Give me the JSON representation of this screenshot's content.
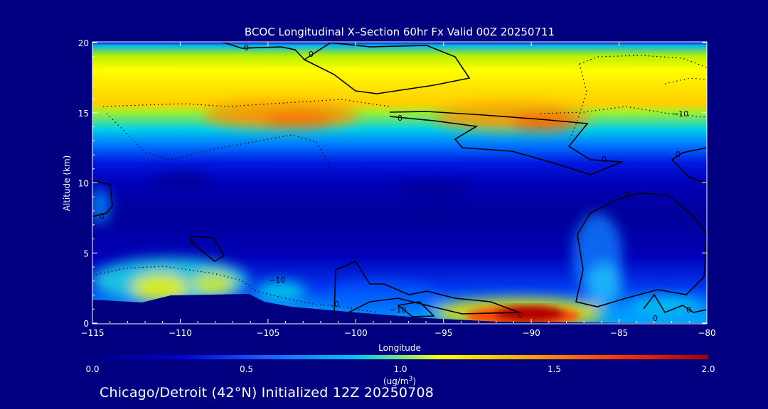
{
  "chart_data": {
    "type": "heatmap",
    "title": "BCOC Longitudinal X–Section 60hr  Fx Valid 00Z 20250711",
    "xlabel": "Longitude",
    "ylabel": "Altitude (km)",
    "xlim": [
      -115,
      -80
    ],
    "ylim": [
      0,
      20
    ],
    "x_ticks": [
      -115,
      -110,
      -105,
      -100,
      -95,
      -90,
      -85,
      -80
    ],
    "x_tick_labels": [
      "−115",
      "−110",
      "−105",
      "−100",
      "−95",
      "−90",
      "−85",
      "−80"
    ],
    "y_ticks": [
      0,
      5,
      10,
      15,
      20
    ],
    "y_tick_labels": [
      "0",
      "5",
      "10",
      "15",
      "20"
    ],
    "colorbar": {
      "min": 0.0,
      "max": 2.0,
      "ticks": [
        0.0,
        0.5,
        1.0,
        1.5,
        2.0
      ],
      "tick_labels": [
        "0.0",
        "0.5",
        "1.0",
        "1.5",
        "2.0"
      ],
      "unit_label": "(ug/m",
      "unit_sup": "3",
      "unit_close": ")",
      "colors": [
        "#000080",
        "#0000d0",
        "#1e5aff",
        "#00c8f0",
        "#ffff00",
        "#ffa000",
        "#ff3000",
        "#a00000"
      ]
    },
    "concentration_features": [
      {
        "feature": "upper band",
        "lon": [
          -115,
          -80
        ],
        "alt": [
          12.5,
          19
        ],
        "value": 1.1
      },
      {
        "feature": "upper maximum west",
        "lon": [
          -107,
          -98
        ],
        "alt": [
          14,
          15.5
        ],
        "value": 1.4
      },
      {
        "feature": "upper maximum east",
        "lon": [
          -95,
          -84
        ],
        "alt": [
          14,
          15.5
        ],
        "value": 1.45
      },
      {
        "feature": "surface plume",
        "lon": [
          -95,
          -85
        ],
        "alt": [
          0,
          1.5
        ],
        "value": 2.0
      },
      {
        "feature": "low-level west",
        "lon": [
          -115,
          -103
        ],
        "alt": [
          1,
          6
        ],
        "value": 0.9
      },
      {
        "feature": "rising tongue east",
        "lon": [
          -89,
          -84
        ],
        "alt": [
          1,
          5
        ],
        "value": 0.8
      }
    ],
    "contour_labels": [
      "0",
      "0",
      "0",
      "0",
      "0",
      "−10",
      "0",
      "0",
      "0",
      "0",
      "−10",
      "−10",
      "0",
      "0",
      "0"
    ],
    "terrain": [
      [
        -115,
        1.7
      ],
      [
        -110.5,
        2.0
      ],
      [
        -104,
        2.0
      ],
      [
        -102,
        1.2
      ],
      [
        -95,
        0.8
      ],
      [
        -90,
        0.4
      ],
      [
        -85,
        0.15
      ],
      [
        -80,
        0.1
      ]
    ]
  },
  "footer": "Chicago/Detroit (42°N) Initialized 12Z 20250708"
}
